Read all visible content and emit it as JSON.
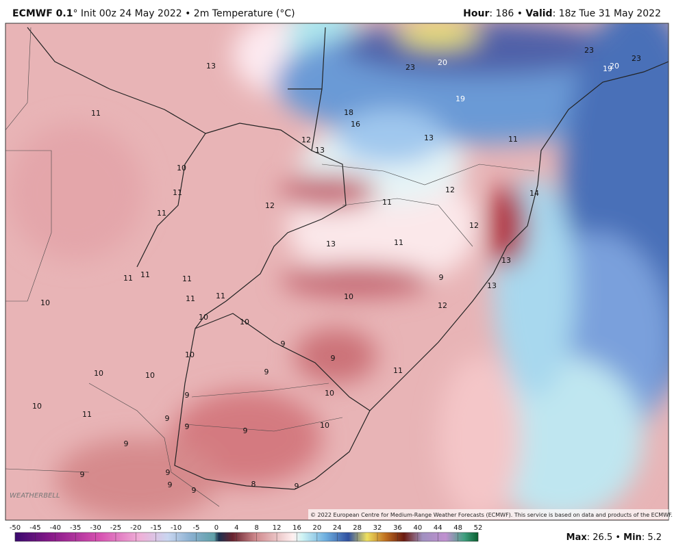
{
  "header": {
    "model": "ECMWF 0.1",
    "init": "° Init 00z 24 May 2022 • 2m Temperature (°C)",
    "hour_label": "Hour",
    "hour_value": ": 186 • ",
    "valid_label": "Valid",
    "valid_value": ": 18z Tue 31 May 2022"
  },
  "map_labels": [
    13,
    11,
    18,
    16,
    12,
    13,
    13,
    11,
    10,
    11,
    11,
    12,
    12,
    11,
    14,
    12,
    13,
    11,
    13,
    11,
    11,
    11,
    9,
    13,
    10,
    11,
    11,
    10,
    12,
    10,
    10,
    9,
    9,
    10,
    10,
    10,
    9,
    11,
    9,
    10,
    10,
    11,
    9,
    9,
    9,
    10,
    9,
    9,
    9,
    9,
    8,
    9,
    9,
    23,
    20,
    23,
    19,
    20,
    23,
    19
  ],
  "copyright": "© 2022 European Centre for Medium-Range Weather Forecasts (ECMWF). This service is based on data and products of the ECMWF.",
  "logo": "WEATHERBELL",
  "colorbar": {
    "ticks": [
      -50,
      -45,
      -40,
      -35,
      -30,
      -25,
      -20,
      -15,
      -10,
      -5,
      0,
      4,
      8,
      12,
      16,
      20,
      24,
      28,
      32,
      36,
      40,
      44,
      48,
      52
    ]
  },
  "footer": {
    "max_label": "Max",
    "max_value": ": 26.5 • ",
    "min_label": "Min",
    "min_value": ": 5.2"
  }
}
